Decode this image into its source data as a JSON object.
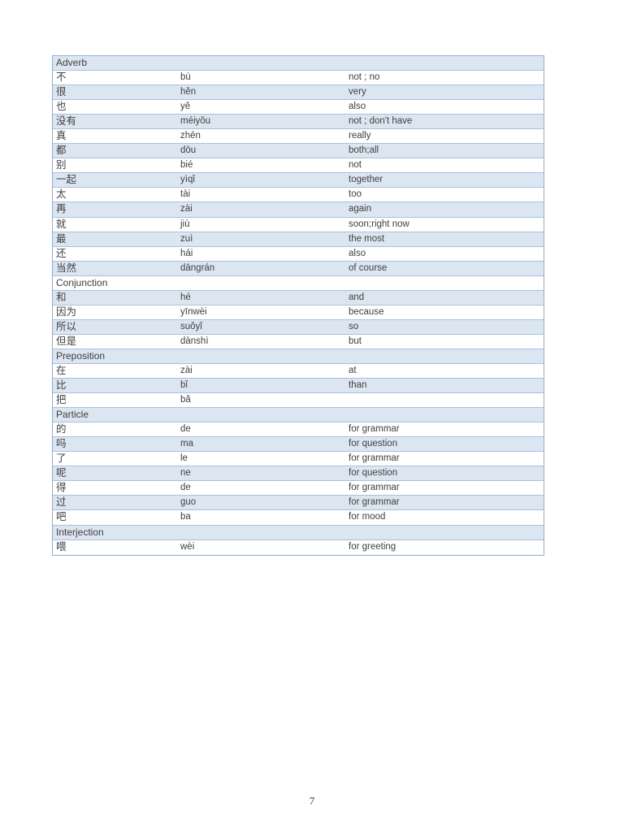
{
  "page": {
    "number": "7"
  },
  "colors": {
    "band_fill": "#dce6f1",
    "border_outer": "#8fadd1",
    "border_inner": "#aac0dc",
    "text": "#3f3f3f"
  },
  "table": {
    "sections": [
      {
        "header": "Adverb",
        "rows": [
          {
            "hanzi": "不",
            "pinyin": "bù",
            "meaning": "not ; no"
          },
          {
            "hanzi": "很",
            "pinyin": "hěn",
            "meaning": "very"
          },
          {
            "hanzi": "也",
            "pinyin": "yě",
            "meaning": "also"
          },
          {
            "hanzi": "没有",
            "pinyin": "méiyǒu",
            "meaning": "not ; don't have"
          },
          {
            "hanzi": "真",
            "pinyin": "zhēn",
            "meaning": "really"
          },
          {
            "hanzi": "都",
            "pinyin": "dōu",
            "meaning": "both;all"
          },
          {
            "hanzi": "别",
            "pinyin": "bié",
            "meaning": "not"
          },
          {
            "hanzi": "一起",
            "pinyin": "yìqǐ",
            "meaning": "together"
          },
          {
            "hanzi": "太",
            "pinyin": "tài",
            "meaning": "too"
          },
          {
            "hanzi": "再",
            "pinyin": "zài",
            "meaning": "again"
          },
          {
            "hanzi": "就",
            "pinyin": "jiù",
            "meaning": "soon;right now"
          },
          {
            "hanzi": "最",
            "pinyin": "zuì",
            "meaning": "the most"
          },
          {
            "hanzi": "还",
            "pinyin": "hái",
            "meaning": "also"
          },
          {
            "hanzi": "当然",
            "pinyin": "dāngrán",
            "meaning": "of course"
          }
        ]
      },
      {
        "header": "Conjunction",
        "rows": [
          {
            "hanzi": "和",
            "pinyin": "hé",
            "meaning": "and"
          },
          {
            "hanzi": "因为",
            "pinyin": "yīnwèi",
            "meaning": "because"
          },
          {
            "hanzi": "所以",
            "pinyin": "suǒyǐ",
            "meaning": "so"
          },
          {
            "hanzi": "但是",
            "pinyin": "dànshì",
            "meaning": "but"
          }
        ]
      },
      {
        "header": "Preposition",
        "rows": [
          {
            "hanzi": "在",
            "pinyin": "zài",
            "meaning": "at"
          },
          {
            "hanzi": "比",
            "pinyin": "bǐ",
            "meaning": "than"
          },
          {
            "hanzi": "把",
            "pinyin": "bǎ",
            "meaning": ""
          }
        ]
      },
      {
        "header": "Particle",
        "rows": [
          {
            "hanzi": "的",
            "pinyin": "de",
            "meaning": "for grammar"
          },
          {
            "hanzi": "吗",
            "pinyin": "ma",
            "meaning": "for question"
          },
          {
            "hanzi": "了",
            "pinyin": "le",
            "meaning": "for grammar"
          },
          {
            "hanzi": "呢",
            "pinyin": "ne",
            "meaning": "for question"
          },
          {
            "hanzi": "得",
            "pinyin": "de",
            "meaning": "for grammar"
          },
          {
            "hanzi": "过",
            "pinyin": "guo",
            "meaning": "for grammar"
          },
          {
            "hanzi": "吧",
            "pinyin": "ba",
            "meaning": "for mood"
          }
        ]
      },
      {
        "header": "Interjection",
        "rows": [
          {
            "hanzi": "喂",
            "pinyin": "wèi",
            "meaning": "for greeting"
          }
        ]
      }
    ]
  }
}
